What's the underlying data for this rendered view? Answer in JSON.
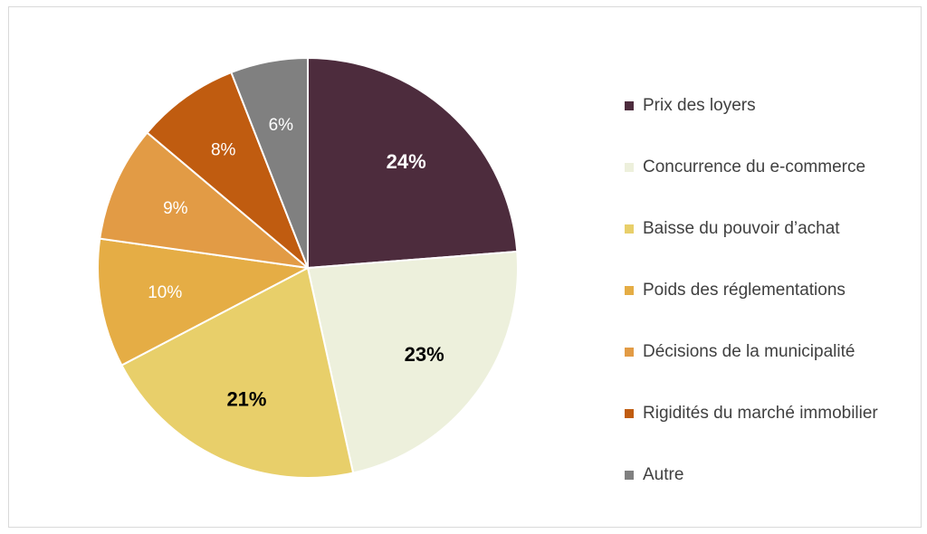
{
  "chart_data": {
    "type": "pie",
    "title": "",
    "categories": [
      "Prix des loyers",
      "Concurrence du e-commerce",
      "Baisse du pouvoir d’achat",
      "Poids des réglementations",
      "Décisions de la municipalité",
      "Rigidités du marché immobilier",
      "Autre"
    ],
    "values": [
      24,
      23,
      21,
      10,
      9,
      8,
      6
    ],
    "data_labels": [
      "24%",
      "23%",
      "21%",
      "10%",
      "9%",
      "8%",
      "6%"
    ],
    "colors": [
      "#4d2c3d",
      "#edf0dc",
      "#e8cf6a",
      "#e5ad45",
      "#e29b45",
      "#c05c10",
      "#808080"
    ],
    "label_colors": [
      "#ffffff",
      "#000000",
      "#000000",
      "#ffffff",
      "#ffffff",
      "#ffffff",
      "#ffffff"
    ],
    "label_bold": [
      true,
      true,
      true,
      false,
      false,
      false,
      false
    ],
    "legend_position": "right",
    "start_angle_deg": 0,
    "direction": "clockwise"
  }
}
